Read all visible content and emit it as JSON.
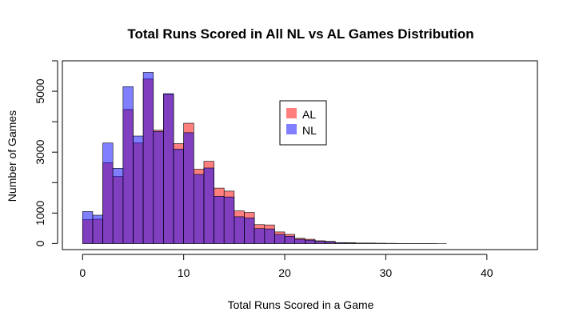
{
  "chart_data": {
    "type": "bar",
    "title": "Total Runs Scored in All NL vs AL Games Distribution",
    "xlabel": "Total Runs Scored in a Game",
    "ylabel": "Number of Games",
    "xlim": [
      -2,
      45
    ],
    "ylim": [
      -200,
      6000
    ],
    "x_ticks": [
      0,
      10,
      20,
      30,
      40
    ],
    "y_ticks": [
      0,
      1000,
      3000,
      5000
    ],
    "grid": false,
    "legend_position": "top-center",
    "bin_width": 1,
    "bin_start": 0,
    "series": [
      {
        "name": "AL",
        "color": "#ff000080",
        "values": [
          780,
          800,
          2650,
          2200,
          4400,
          3300,
          5400,
          3720,
          4900,
          3280,
          3950,
          2440,
          2700,
          1820,
          1720,
          1070,
          1020,
          620,
          610,
          380,
          300,
          170,
          140,
          90,
          70,
          30,
          25,
          15,
          12,
          8,
          5,
          3,
          2,
          1,
          1,
          1,
          0,
          0,
          0,
          0,
          0,
          0,
          0,
          0,
          0
        ]
      },
      {
        "name": "NL",
        "color": "#0000ff80",
        "values": [
          1050,
          930,
          3300,
          2470,
          5150,
          3530,
          5620,
          3680,
          4920,
          3100,
          3640,
          2270,
          2480,
          1550,
          1530,
          880,
          840,
          490,
          480,
          300,
          240,
          140,
          110,
          70,
          55,
          25,
          20,
          12,
          10,
          6,
          4,
          2,
          1,
          1,
          1,
          0,
          0,
          0,
          0,
          0,
          0,
          0,
          0,
          0,
          0
        ]
      }
    ]
  }
}
